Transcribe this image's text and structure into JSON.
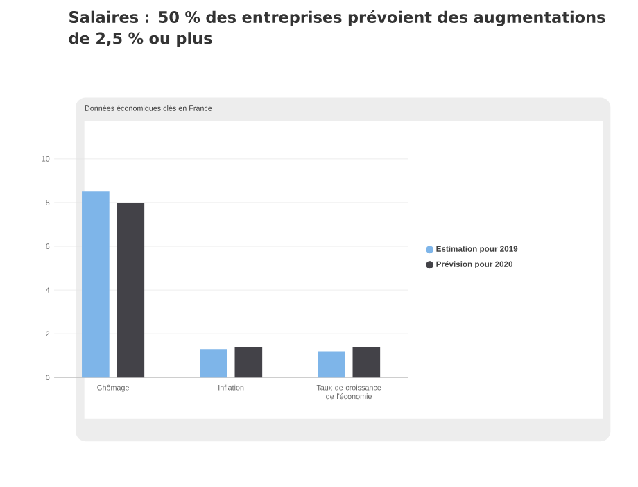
{
  "chart_data": {
    "type": "bar",
    "title": "Salaires : 50 % des entreprises prévoient des augmentations de 2,5 % ou plus",
    "subtitle": "Données économiques clés en France",
    "categories": [
      "Chômage",
      "Inflation",
      "Taux de croissance de l'économie"
    ],
    "series": [
      {
        "name": "Estimation pour 2019",
        "color": "#7eb5e9",
        "values": [
          8.5,
          1.3,
          1.2
        ]
      },
      {
        "name": "Prévision pour 2020",
        "color": "#434248",
        "values": [
          8.0,
          1.4,
          1.4
        ]
      }
    ],
    "ylim": [
      0,
      10
    ],
    "yticks": [
      0,
      2,
      4,
      6,
      8,
      10
    ],
    "grid": "y",
    "legend": "right",
    "marker": "circle"
  }
}
